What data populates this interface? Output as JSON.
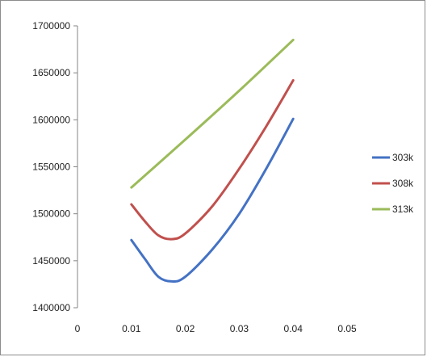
{
  "chart_data": {
    "type": "line",
    "title": "",
    "xlabel": "",
    "ylabel": "",
    "xlim": [
      0,
      0.05
    ],
    "ylim": [
      1400000,
      1700000
    ],
    "x_ticks": [
      0,
      0.01,
      0.02,
      0.03,
      0.04,
      0.05
    ],
    "x_tick_labels": [
      "0",
      "0.01",
      "0.02",
      "0.03",
      "0.04",
      "0.05"
    ],
    "y_ticks": [
      1400000,
      1450000,
      1500000,
      1550000,
      1600000,
      1650000,
      1700000
    ],
    "y_tick_labels": [
      "1400000",
      "1450000",
      "1500000",
      "1550000",
      "1600000",
      "1650000",
      "1700000"
    ],
    "grid": false,
    "legend_position": "right",
    "series": [
      {
        "name": "303k",
        "color": "#4472C4",
        "x": [
          0.01,
          0.0125,
          0.015,
          0.0175,
          0.02,
          0.025,
          0.03,
          0.035,
          0.04
        ],
        "y": [
          1472000,
          1452000,
          1433000,
          1428000,
          1433000,
          1462000,
          1500000,
          1548000,
          1601000
        ]
      },
      {
        "name": "308k",
        "color": "#C0504D",
        "x": [
          0.01,
          0.0125,
          0.015,
          0.0175,
          0.02,
          0.025,
          0.03,
          0.035,
          0.04
        ],
        "y": [
          1510000,
          1492000,
          1477000,
          1473000,
          1479000,
          1508000,
          1548000,
          1593000,
          1642000
        ]
      },
      {
        "name": "313k",
        "color": "#9BBB59",
        "x": [
          0.01,
          0.02,
          0.03,
          0.04
        ],
        "y": [
          1528000,
          1579000,
          1631000,
          1685000
        ]
      }
    ]
  }
}
